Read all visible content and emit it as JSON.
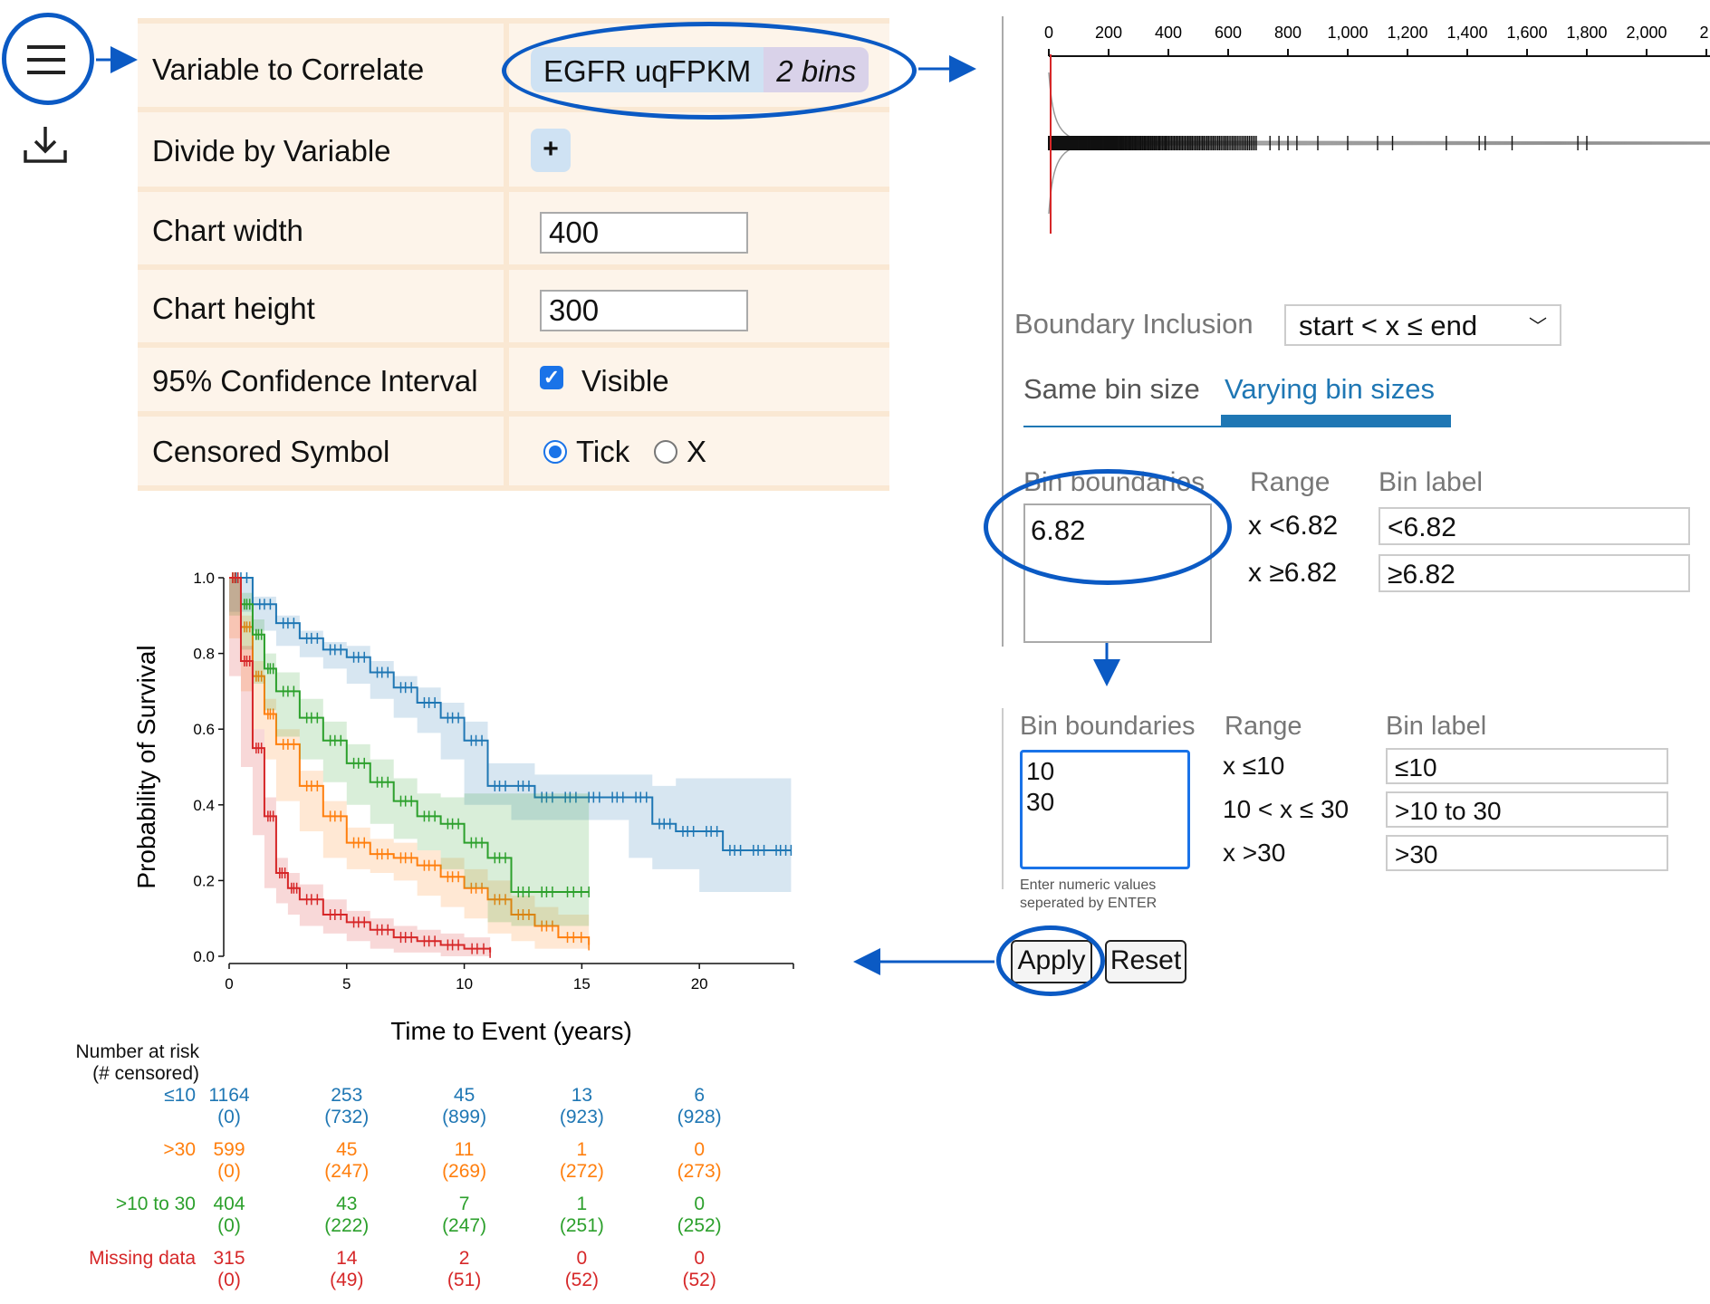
{
  "toolbar": {
    "menu_icon": "hamburger-menu-icon",
    "download_icon": "download-icon"
  },
  "settings": {
    "variable_to_correlate": {
      "label": "Variable to Correlate",
      "term": "EGFR uqFPKM",
      "bins": "2 bins"
    },
    "divide_by": {
      "label": "Divide by Variable",
      "button": "+"
    },
    "chart_width": {
      "label": "Chart width",
      "value": "400"
    },
    "chart_height": {
      "label": "Chart height",
      "value": "300"
    },
    "confidence": {
      "label": "95% Confidence Interval",
      "checked": true,
      "option": "Visible"
    },
    "censored_symbol": {
      "label": "Censored Symbol",
      "options": [
        "Tick",
        "X"
      ],
      "selected": "Tick"
    }
  },
  "density_plot": {
    "ticks": [
      "0",
      "200",
      "400",
      "600",
      "800",
      "1,000",
      "1,200",
      "1,400",
      "1,600",
      "1,800",
      "2,000",
      "2,"
    ],
    "boundary_color": "#d62728"
  },
  "bin_editor": {
    "boundary_inclusion_label": "Boundary Inclusion",
    "boundary_inclusion_value": "start < x ≤ end",
    "tabs": [
      "Same bin size",
      "Varying bin sizes"
    ],
    "active_tab": "Varying bin sizes",
    "before": {
      "headers": [
        "Bin boundaries",
        "Range",
        "Bin label"
      ],
      "boundaries": "6.82",
      "ranges": [
        "x <6.82",
        "x ≥6.82"
      ],
      "labels": [
        "<6.82",
        "≥6.82"
      ]
    },
    "after": {
      "headers": [
        "Bin boundaries",
        "Range",
        "Bin label"
      ],
      "boundaries": "10\n30",
      "ranges": [
        "x ≤10",
        "10 < x ≤ 30",
        "x >30"
      ],
      "labels": [
        "≤10",
        ">10 to 30",
        ">30"
      ],
      "hint": "Enter numeric values seperated by ENTER"
    },
    "apply_label": "Apply",
    "reset_label": "Reset"
  },
  "annotation_color": "#0b5ac4",
  "chart_data": {
    "type": "line",
    "title": "",
    "xlabel": "Time to Event (years)",
    "ylabel": "Probability of Survival",
    "xlim": [
      0,
      24
    ],
    "ylim": [
      0,
      1
    ],
    "xticks": [
      0,
      5,
      10,
      15,
      20
    ],
    "yticks": [
      "0.0",
      "0.2",
      "0.4",
      "0.6",
      "0.8",
      "1.0"
    ],
    "series": [
      {
        "name": "≤10",
        "color": "#1f77b4",
        "x": [
          0,
          1,
          2,
          3,
          4,
          5,
          6,
          7,
          8,
          9,
          10,
          11,
          12,
          13,
          14,
          15,
          16,
          17,
          18,
          19,
          20,
          21,
          22,
          23,
          23.9
        ],
        "y": [
          1.0,
          0.93,
          0.88,
          0.84,
          0.81,
          0.79,
          0.75,
          0.71,
          0.67,
          0.63,
          0.57,
          0.45,
          0.45,
          0.42,
          0.42,
          0.42,
          0.42,
          0.42,
          0.35,
          0.33,
          0.33,
          0.28,
          0.28,
          0.28,
          0.28
        ],
        "ci_lower": [
          1.0,
          0.91,
          0.86,
          0.82,
          0.79,
          0.76,
          0.72,
          0.68,
          0.63,
          0.59,
          0.52,
          0.4,
          0.4,
          0.36,
          0.36,
          0.36,
          0.36,
          0.36,
          0.26,
          0.23,
          0.23,
          0.17,
          0.17,
          0.17,
          0.17
        ],
        "ci_upper": [
          1.0,
          0.95,
          0.9,
          0.86,
          0.83,
          0.82,
          0.78,
          0.74,
          0.71,
          0.67,
          0.62,
          0.51,
          0.51,
          0.48,
          0.48,
          0.48,
          0.48,
          0.48,
          0.45,
          0.47,
          0.47,
          0.47,
          0.47,
          0.47,
          0.47
        ]
      },
      {
        "name": ">30",
        "color": "#ff7f0e",
        "x": [
          0,
          0.5,
          1,
          1.5,
          2,
          3,
          4,
          5,
          6,
          7,
          8,
          9,
          10,
          11,
          12,
          13,
          14,
          15.3
        ],
        "y": [
          1.0,
          0.87,
          0.74,
          0.64,
          0.56,
          0.45,
          0.37,
          0.3,
          0.27,
          0.26,
          0.24,
          0.21,
          0.18,
          0.15,
          0.11,
          0.08,
          0.05,
          0.03
        ],
        "ci_lower": [
          1.0,
          0.84,
          0.7,
          0.6,
          0.52,
          0.41,
          0.33,
          0.26,
          0.23,
          0.22,
          0.2,
          0.16,
          0.13,
          0.1,
          0.06,
          0.04,
          0.02,
          0.02
        ],
        "ci_upper": [
          1.0,
          0.9,
          0.78,
          0.68,
          0.6,
          0.49,
          0.41,
          0.34,
          0.31,
          0.3,
          0.28,
          0.26,
          0.23,
          0.2,
          0.16,
          0.13,
          0.11,
          0.11
        ]
      },
      {
        "name": ">10 to 30",
        "color": "#2ca02c",
        "x": [
          0,
          0.5,
          1,
          1.5,
          2,
          3,
          4,
          5,
          6,
          7,
          8,
          9,
          10,
          11,
          12,
          13,
          14,
          15.3
        ],
        "y": [
          1.0,
          0.93,
          0.85,
          0.76,
          0.7,
          0.63,
          0.57,
          0.51,
          0.46,
          0.41,
          0.37,
          0.35,
          0.3,
          0.26,
          0.17,
          0.17,
          0.17,
          0.17
        ],
        "ci_lower": [
          1.0,
          0.9,
          0.81,
          0.72,
          0.65,
          0.58,
          0.52,
          0.46,
          0.4,
          0.35,
          0.31,
          0.28,
          0.23,
          0.18,
          0.09,
          0.08,
          0.08,
          0.08
        ],
        "ci_upper": [
          1.0,
          0.96,
          0.89,
          0.8,
          0.75,
          0.68,
          0.62,
          0.56,
          0.52,
          0.47,
          0.43,
          0.42,
          0.43,
          0.43,
          0.43,
          0.43,
          0.43,
          0.43
        ]
      },
      {
        "name": "Missing data",
        "color": "#d62728",
        "x": [
          0,
          0.5,
          1,
          1.5,
          2,
          2.5,
          3,
          4,
          5,
          6,
          7,
          8,
          9,
          10,
          11.1
        ],
        "y": [
          1.0,
          0.78,
          0.55,
          0.37,
          0.22,
          0.18,
          0.15,
          0.11,
          0.09,
          0.07,
          0.05,
          0.04,
          0.03,
          0.02,
          0.01
        ],
        "ci_lower": [
          1.0,
          0.74,
          0.5,
          0.32,
          0.18,
          0.14,
          0.11,
          0.08,
          0.06,
          0.04,
          0.02,
          0.01,
          0.01,
          0.0,
          0.0
        ],
        "ci_upper": [
          1.0,
          0.82,
          0.6,
          0.42,
          0.26,
          0.22,
          0.19,
          0.15,
          0.12,
          0.1,
          0.08,
          0.07,
          0.06,
          0.05,
          0.04
        ]
      }
    ],
    "risk_table": {
      "header": [
        "Number at risk",
        "(# censored)"
      ],
      "rows": [
        {
          "name": "≤10",
          "color": "#1f77b4",
          "at_risk": [
            "1164",
            "253",
            "45",
            "13",
            "6"
          ],
          "censored": [
            "(0)",
            "(732)",
            "(899)",
            "(923)",
            "(928)"
          ]
        },
        {
          "name": ">30",
          "color": "#ff7f0e",
          "at_risk": [
            "599",
            "45",
            "11",
            "1",
            "0"
          ],
          "censored": [
            "(0)",
            "(247)",
            "(269)",
            "(272)",
            "(273)"
          ]
        },
        {
          "name": ">10 to 30",
          "color": "#2ca02c",
          "at_risk": [
            "404",
            "43",
            "7",
            "1",
            "0"
          ],
          "censored": [
            "(0)",
            "(222)",
            "(247)",
            "(251)",
            "(252)"
          ]
        },
        {
          "name": "Missing data",
          "color": "#d62728",
          "at_risk": [
            "315",
            "14",
            "2",
            "0",
            "0"
          ],
          "censored": [
            "(0)",
            "(49)",
            "(51)",
            "(52)",
            "(52)"
          ]
        }
      ]
    }
  }
}
